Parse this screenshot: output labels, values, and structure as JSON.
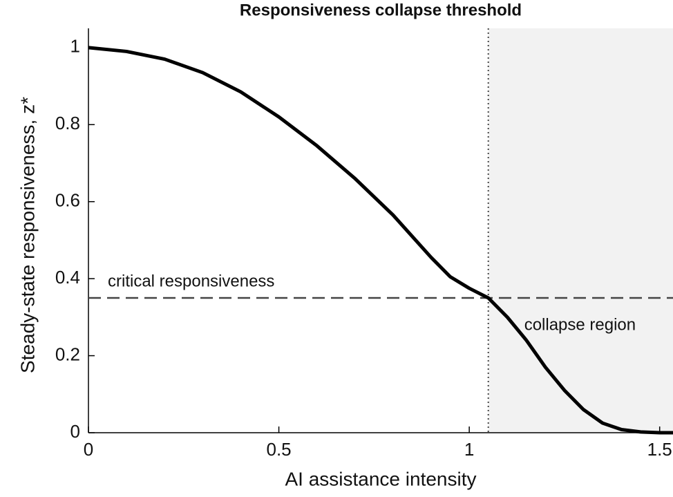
{
  "chart_data": {
    "type": "line",
    "title": "Responsiveness collapse threshold",
    "xlabel": "AI assistance intensity",
    "ylabel": "Steady-state responsiveness, z*",
    "x": [
      0,
      0.1,
      0.2,
      0.3,
      0.4,
      0.5,
      0.6,
      0.7,
      0.8,
      0.9,
      0.95,
      1.0,
      1.05,
      1.1,
      1.15,
      1.2,
      1.25,
      1.3,
      1.35,
      1.4,
      1.45,
      1.5,
      1.535
    ],
    "series": [
      {
        "name": "z*",
        "color": "#000000",
        "values": [
          1.0,
          0.99,
          0.97,
          0.935,
          0.885,
          0.82,
          0.745,
          0.66,
          0.565,
          0.455,
          0.405,
          0.375,
          0.35,
          0.3,
          0.24,
          0.17,
          0.11,
          0.06,
          0.025,
          0.008,
          0.002,
          0,
          0
        ]
      }
    ],
    "hline": 0.35,
    "vline": 1.05,
    "annotations": [
      "critical responsiveness",
      "collapse region"
    ],
    "xlim": [
      0,
      1.535
    ],
    "ylim": [
      0,
      1.05
    ],
    "xticks": [
      0,
      0.5,
      1,
      1.5
    ],
    "yticks": [
      0,
      0.2,
      0.4,
      0.6,
      0.8,
      1
    ]
  }
}
